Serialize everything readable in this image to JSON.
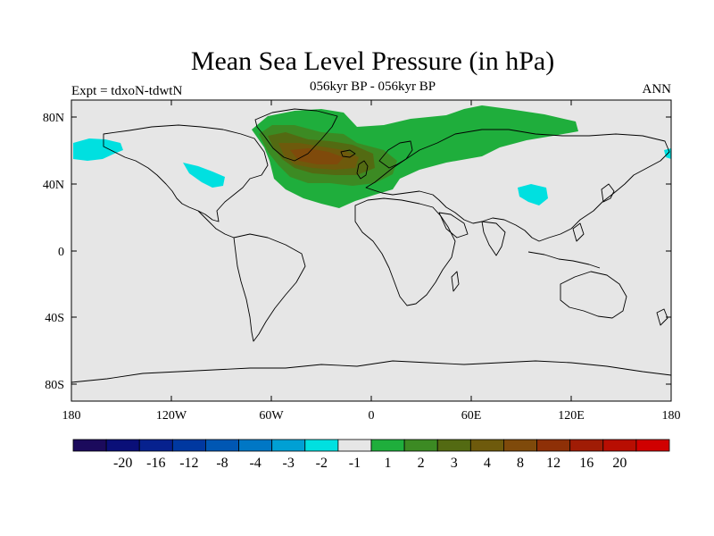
{
  "title": "Mean Sea Level Pressure (in hPa)",
  "subtitle": "056kyr BP - 056kyr BP",
  "left_label": "Expt = tdxoN-tdwtN",
  "right_label": "ANN",
  "axes": {
    "lat_ticks": [
      "80N",
      "40N",
      "0",
      "40S",
      "80S"
    ],
    "lon_ticks": [
      "180",
      "120W",
      "60W",
      "0",
      "60E",
      "120E",
      "180"
    ]
  },
  "colorbar": {
    "colors": [
      "#1b0a5c",
      "#0a0f78",
      "#06218e",
      "#0038a0",
      "#0057b3",
      "#0077c5",
      "#00a0d4",
      "#00e0e0",
      "#e6e6e6",
      "#1fae3c",
      "#3c8a23",
      "#536a12",
      "#6e5a0c",
      "#7f4a0b",
      "#8e3007",
      "#a01c05",
      "#b80e02",
      "#d00000"
    ],
    "labels": [
      "-20",
      "-16",
      "-12",
      "-8",
      "-4",
      "-3",
      "-2",
      "-1",
      "1",
      "2",
      "3",
      "4",
      "8",
      "12",
      "16",
      "20"
    ]
  },
  "map": {
    "ocean_color": "#e6e6e6",
    "coast_color": "#000000",
    "positive_anomaly_region": "North Atlantic / Arctic",
    "negative_anomaly_regions": [
      "North Pacific",
      "Tibetan Plateau"
    ]
  }
}
